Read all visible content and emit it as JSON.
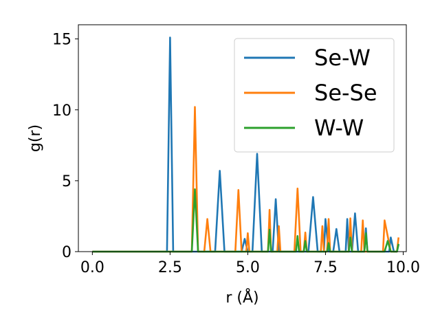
{
  "chart_data": {
    "type": "line",
    "xlabel": "r (Å)",
    "ylabel": "g(r)",
    "xlim": [
      -0.45,
      10.1
    ],
    "ylim": [
      0,
      16
    ],
    "xticks": [
      0.0,
      2.5,
      5.0,
      7.5,
      10.0
    ],
    "xtick_labels": [
      "0.0",
      "2.5",
      "5.0",
      "7.5",
      "10.0"
    ],
    "yticks": [
      0,
      5,
      10,
      15
    ],
    "ytick_labels": [
      "0",
      "5",
      "10",
      "15"
    ],
    "grid": false,
    "legend_position": "top-right",
    "series": [
      {
        "name": "Se-W",
        "color": "#1f77b4",
        "points": [
          [
            0,
            0
          ],
          [
            2.4,
            0
          ],
          [
            2.5,
            15.1
          ],
          [
            2.6,
            0
          ],
          [
            3.95,
            0
          ],
          [
            4.1,
            5.7
          ],
          [
            4.25,
            0
          ],
          [
            4.8,
            0
          ],
          [
            4.9,
            0.9
          ],
          [
            5.0,
            0
          ],
          [
            5.15,
            0
          ],
          [
            5.3,
            6.9
          ],
          [
            5.45,
            0
          ],
          [
            5.8,
            0
          ],
          [
            5.9,
            3.7
          ],
          [
            6.0,
            0
          ],
          [
            6.95,
            0
          ],
          [
            7.1,
            3.85
          ],
          [
            7.25,
            0
          ],
          [
            7.45,
            0
          ],
          [
            7.5,
            2.3
          ],
          [
            7.6,
            0
          ],
          [
            7.75,
            0
          ],
          [
            7.85,
            1.6
          ],
          [
            7.95,
            0
          ],
          [
            8.15,
            0
          ],
          [
            8.2,
            2.3
          ],
          [
            8.25,
            0
          ],
          [
            8.35,
            0
          ],
          [
            8.45,
            2.7
          ],
          [
            8.55,
            0
          ],
          [
            8.75,
            0
          ],
          [
            8.8,
            1.65
          ],
          [
            8.85,
            0
          ],
          [
            9.55,
            0
          ],
          [
            9.6,
            1.0
          ],
          [
            9.7,
            0
          ],
          [
            9.8,
            0
          ],
          [
            9.85,
            0.5
          ]
        ]
      },
      {
        "name": "Se-Se",
        "color": "#ff7f0e",
        "points": [
          [
            0,
            0
          ],
          [
            3.2,
            0
          ],
          [
            3.3,
            10.2
          ],
          [
            3.4,
            0
          ],
          [
            3.6,
            0
          ],
          [
            3.7,
            2.3
          ],
          [
            3.8,
            0
          ],
          [
            4.6,
            0
          ],
          [
            4.7,
            4.35
          ],
          [
            4.8,
            0
          ],
          [
            4.95,
            0
          ],
          [
            5.0,
            1.3
          ],
          [
            5.05,
            0
          ],
          [
            5.65,
            0
          ],
          [
            5.7,
            2.95
          ],
          [
            5.75,
            0
          ],
          [
            5.95,
            0
          ],
          [
            6.0,
            1.8
          ],
          [
            6.05,
            0
          ],
          [
            6.5,
            0
          ],
          [
            6.6,
            4.45
          ],
          [
            6.7,
            0
          ],
          [
            6.8,
            0
          ],
          [
            6.85,
            1.35
          ],
          [
            6.9,
            0
          ],
          [
            7.35,
            0
          ],
          [
            7.4,
            1.8
          ],
          [
            7.45,
            0
          ],
          [
            7.55,
            0
          ],
          [
            7.6,
            2.3
          ],
          [
            7.65,
            0
          ],
          [
            8.25,
            0
          ],
          [
            8.3,
            2.35
          ],
          [
            8.35,
            0
          ],
          [
            8.65,
            0
          ],
          [
            8.7,
            2.2
          ],
          [
            8.75,
            0
          ],
          [
            9.35,
            0
          ],
          [
            9.4,
            2.2
          ],
          [
            9.6,
            0
          ],
          [
            9.8,
            0
          ],
          [
            9.85,
            1.0
          ]
        ]
      },
      {
        "name": "W-W",
        "color": "#2ca02c",
        "points": [
          [
            0,
            0
          ],
          [
            3.2,
            0
          ],
          [
            3.3,
            4.4
          ],
          [
            3.4,
            0
          ],
          [
            5.65,
            0
          ],
          [
            5.7,
            1.55
          ],
          [
            5.75,
            0
          ],
          [
            6.55,
            0
          ],
          [
            6.6,
            1.1
          ],
          [
            6.65,
            0
          ],
          [
            6.8,
            0
          ],
          [
            6.85,
            0.75
          ],
          [
            6.9,
            0
          ],
          [
            7.55,
            0
          ],
          [
            7.6,
            0.6
          ],
          [
            7.65,
            0
          ],
          [
            8.25,
            0
          ],
          [
            8.3,
            1.0
          ],
          [
            8.35,
            0
          ],
          [
            8.75,
            0
          ],
          [
            8.8,
            1.3
          ],
          [
            8.85,
            0
          ],
          [
            9.4,
            0
          ],
          [
            9.5,
            0.75
          ],
          [
            9.6,
            0
          ],
          [
            9.8,
            0
          ],
          [
            9.85,
            0.55
          ]
        ]
      }
    ]
  }
}
